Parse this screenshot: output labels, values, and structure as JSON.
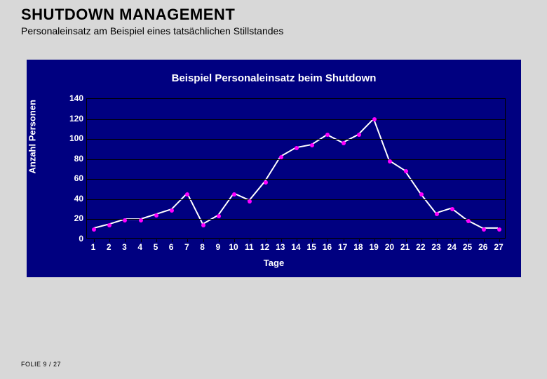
{
  "header": {
    "title": "SHUTDOWN MANAGEMENT",
    "subtitle": "Personaleinsatz am Beispiel eines tatsächlichen Stillstandes"
  },
  "chart": {
    "type": "line",
    "title": "Beispiel Personaleinsatz beim Shutdown",
    "xlabel": "Tage",
    "ylabel": "Anzahl Personen",
    "background_color": "#000080",
    "grid_color": "#000000",
    "text_color": "#ffffff",
    "line_color": "#ffffff",
    "marker_color": "#ff00ff",
    "marker_size": 6,
    "line_width": 2,
    "ylim": [
      0,
      140
    ],
    "ytick_step": 20,
    "yticks": [
      0,
      20,
      40,
      60,
      80,
      100,
      120,
      140
    ],
    "xticks": [
      1,
      2,
      3,
      4,
      5,
      6,
      7,
      8,
      9,
      10,
      11,
      12,
      13,
      14,
      15,
      16,
      17,
      18,
      19,
      20,
      21,
      22,
      23,
      24,
      25,
      26,
      27
    ],
    "x_values": [
      1,
      2,
      3,
      4,
      5,
      6,
      7,
      8,
      9,
      10,
      11,
      12,
      13,
      14,
      15,
      16,
      17,
      18,
      19,
      20,
      21,
      22,
      23,
      24,
      25,
      26,
      27
    ],
    "y_values": [
      10,
      14,
      19,
      19,
      24,
      29,
      45,
      14,
      23,
      45,
      38,
      57,
      82,
      91,
      94,
      104,
      96,
      104,
      120,
      78,
      68,
      45,
      25,
      30,
      18,
      10,
      10
    ],
    "title_fontsize": 15,
    "label_fontsize": 13,
    "tick_fontsize": 12
  },
  "footer": {
    "text": "FOLIE 9 / 27"
  }
}
